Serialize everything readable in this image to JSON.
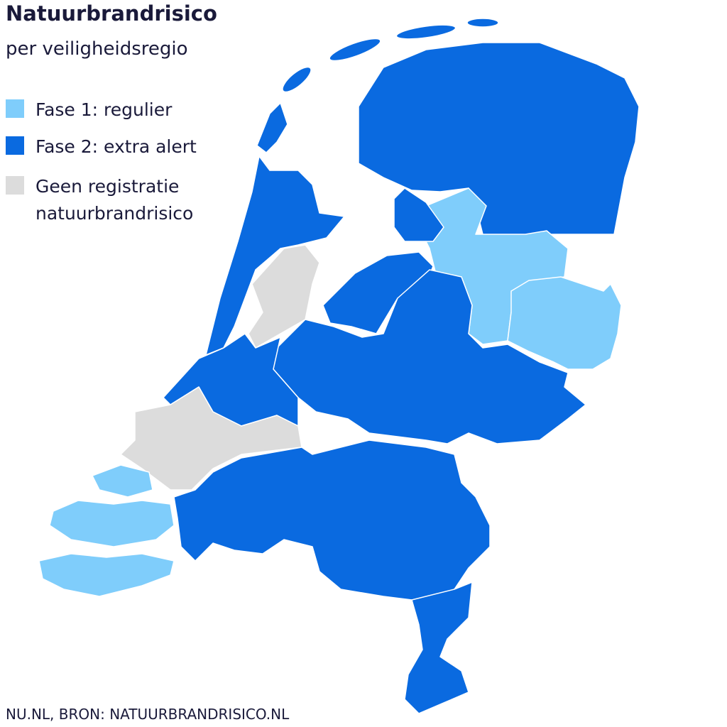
{
  "header": {
    "title": "Natuurbrandrisico",
    "subtitle": "per veiligheidsregio"
  },
  "legend": [
    {
      "label": "Fase 1: regulier",
      "color": "#7fcdfb"
    },
    {
      "label": "Fase 2: extra alert",
      "color": "#0a6ae0"
    },
    {
      "label": "Geen registratie natuurbrandrisico",
      "color": "#dcdcdc"
    }
  ],
  "source": "NU.NL, BRON: NATUURBRANDRISICO.NL"
}
